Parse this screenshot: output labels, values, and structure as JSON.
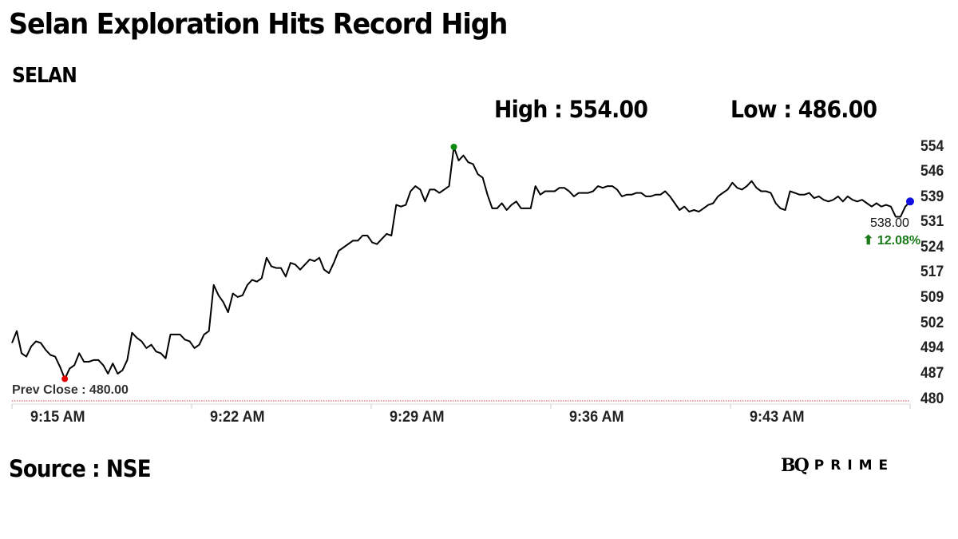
{
  "header": {
    "title": "Selan Exploration Hits Record High",
    "ticker": "SELAN",
    "high_label": "High : 554.00",
    "low_label": "Low : 486.00"
  },
  "annotations": {
    "prev_close": "Prev Close : 480.00",
    "last_price": "538.00",
    "change": "⬆ 12.08%"
  },
  "footer": {
    "source": "Source : NSE",
    "logo_bq": "BQ",
    "logo_prime": "PRIME"
  },
  "colors": {
    "line": "#000000",
    "low_marker": "#e00000",
    "high_marker": "#0a8a0a",
    "last_marker": "#1010e0",
    "prev_close_line": "#d04040",
    "change_up": "#1a7a1a"
  },
  "chart_data": {
    "type": "line",
    "title": "Selan Exploration Hits Record High",
    "subtitle": "SELAN",
    "xlabel": "",
    "ylabel": "",
    "ylim": [
      480,
      554
    ],
    "y_ticks": [
      "554",
      "546",
      "539",
      "531",
      "524",
      "517",
      "509",
      "502",
      "494",
      "487",
      "480"
    ],
    "x_ticks": [
      "9:15 AM",
      "9:22 AM",
      "9:29 AM",
      "9:36 AM",
      "9:43 AM"
    ],
    "grid": false,
    "legend": "none",
    "prev_close": 480.0,
    "high": 554.0,
    "low": 486.0,
    "last": 538.0,
    "change_pct": 12.08,
    "series": [
      {
        "name": "SELAN",
        "x_start": "9:15 AM",
        "x_end": "9:50 AM",
        "values": [
          496.5,
          500.0,
          493.5,
          492.5,
          495.5,
          497.0,
          496.5,
          494.5,
          493.0,
          492.5,
          489.5,
          486.0,
          489.0,
          490.0,
          493.5,
          491.0,
          491.0,
          491.5,
          491.5,
          490.0,
          487.5,
          490.5,
          487.5,
          488.5,
          491.5,
          499.5,
          498.0,
          497.0,
          495.0,
          496.0,
          494.0,
          493.5,
          492.0,
          499.0,
          499.0,
          499.0,
          497.5,
          497.0,
          495.0,
          496.0,
          499.0,
          500.0,
          513.5,
          510.5,
          508.5,
          505.5,
          511.0,
          510.0,
          510.5,
          513.5,
          515.0,
          514.5,
          515.5,
          521.5,
          519.0,
          518.5,
          518.5,
          516.0,
          520.0,
          519.5,
          518.0,
          519.5,
          521.0,
          520.5,
          521.5,
          518.0,
          517.0,
          520.0,
          523.5,
          524.5,
          525.5,
          526.5,
          526.5,
          528.0,
          528.0,
          526.0,
          525.5,
          527.0,
          528.5,
          528.0,
          537.0,
          536.5,
          537.0,
          541.0,
          542.5,
          541.5,
          538.0,
          541.5,
          541.5,
          540.5,
          541.5,
          542.5,
          554.0,
          550.0,
          551.5,
          549.5,
          549.0,
          546.0,
          545.0,
          540.0,
          536.0,
          536.0,
          537.5,
          535.5,
          537.0,
          538.0,
          536.0,
          536.0,
          536.0,
          542.5,
          540.0,
          541.0,
          541.0,
          541.0,
          542.0,
          542.0,
          541.0,
          539.5,
          540.5,
          540.5,
          540.5,
          541.0,
          542.5,
          542.0,
          542.5,
          542.5,
          541.5,
          539.5,
          540.0,
          540.0,
          540.5,
          540.5,
          539.5,
          539.5,
          540.0,
          540.0,
          541.0,
          539.5,
          537.5,
          535.5,
          536.5,
          535.0,
          535.5,
          535.0,
          536.0,
          537.0,
          537.5,
          539.5,
          540.5,
          541.5,
          543.5,
          542.0,
          541.5,
          542.5,
          544.0,
          542.0,
          541.0,
          541.0,
          540.5,
          537.5,
          536.0,
          535.5,
          541.0,
          540.5,
          540.0,
          540.0,
          540.5,
          539.0,
          539.5,
          538.5,
          538.0,
          538.5,
          539.5,
          538.0,
          539.5,
          538.5,
          538.0,
          538.5,
          537.5,
          536.5,
          537.5,
          536.5,
          537.0,
          536.5,
          533.5,
          533.5,
          536.5,
          538.0
        ]
      }
    ]
  }
}
